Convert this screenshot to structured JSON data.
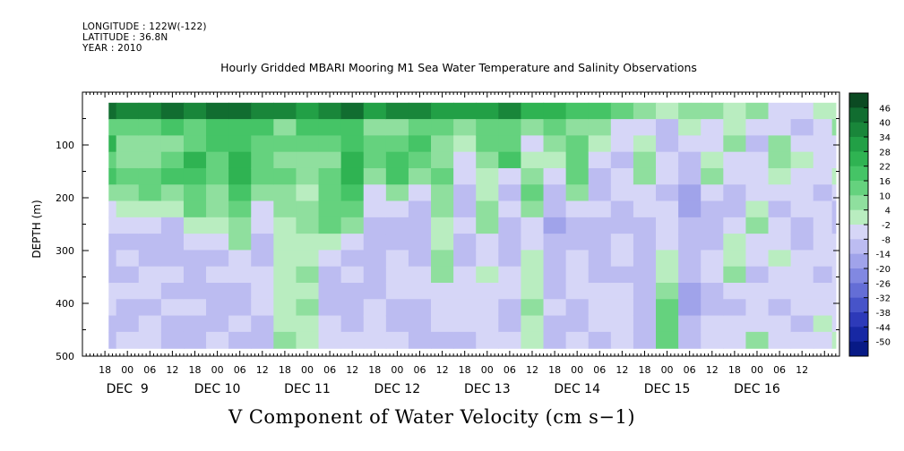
{
  "header": {
    "longitude": "LONGITUDE : 122W(-122)",
    "latitude": "LATITUDE : 36.8N",
    "year": "YEAR : 2010"
  },
  "chart_data": {
    "type": "heatmap",
    "title": "Hourly Gridded MBARI Mooring M1 Sea Water Temperature and Salinity Observations",
    "variable_label": "V Component of Water Velocity (cm s−1)",
    "ylabel": "DEPTH (m)",
    "ylim": [
      500,
      0
    ],
    "y_inverted": true,
    "y_ticks": [
      100,
      200,
      300,
      400,
      500
    ],
    "x_range_hours": [
      "2010-12-08T12:00",
      "2010-12-16T22:00"
    ],
    "x_hour_ticks": [
      "18",
      "00",
      "06",
      "12",
      "18",
      "00",
      "06",
      "12",
      "18",
      "00",
      "06",
      "12",
      "18",
      "00",
      "06",
      "12",
      "18",
      "00",
      "06",
      "12",
      "18",
      "00",
      "06",
      "12",
      "18",
      "00",
      "06",
      "12",
      "18",
      "00",
      "06",
      "12"
    ],
    "x_day_labels": [
      "DEC  9",
      "DEC 10",
      "DEC 11",
      "DEC 12",
      "DEC 13",
      "DEC 14",
      "DEC 15",
      "DEC 16"
    ],
    "data_time_range": [
      "2010-12-08T19:00",
      "2010-12-16T21:00"
    ],
    "data_depth_range_m": [
      20,
      485
    ],
    "colorbar": {
      "levels": [
        "46",
        "40",
        "34",
        "28",
        "22",
        "16",
        "10",
        "4",
        "-2",
        "-8",
        "-14",
        "-20",
        "-26",
        "-32",
        "-38",
        "-44",
        "-50"
      ],
      "colors": [
        "#0b4a22",
        "#116d30",
        "#19863a",
        "#22a046",
        "#2fb352",
        "#45c466",
        "#65d27e",
        "#8fdf9e",
        "#b9edc0",
        "#d6d6f7",
        "#bcbcf1",
        "#a0a3ea",
        "#8188e1",
        "#646ed6",
        "#4754c9",
        "#2d3ab9",
        "#1728a4",
        "#081a86"
      ]
    },
    "columns": [
      {
        "hour": 0,
        "v": [
          35,
          20,
          14,
          10,
          6,
          8,
          -2,
          -4,
          -10,
          -12,
          -14,
          -12,
          -12,
          -14,
          -8
        ]
      },
      {
        "hour": 6,
        "v": [
          40,
          14,
          22,
          10,
          18,
          6,
          -4,
          -8,
          -14,
          -12,
          -12,
          -8,
          -6,
          -10,
          -10
        ]
      },
      {
        "hour": 12,
        "v": [
          38,
          10,
          4,
          8,
          10,
          4,
          -2,
          -6,
          -10,
          -6,
          -14,
          -8,
          -12,
          -10,
          -8
        ]
      },
      {
        "hour": 18,
        "v": [
          36,
          12,
          8,
          6,
          14,
          10,
          2,
          -6,
          -10,
          -12,
          -8,
          -4,
          -10,
          -6,
          -4
        ]
      },
      {
        "hour": 24,
        "v": [
          40,
          18,
          6,
          12,
          16,
          8,
          2,
          -10,
          -14,
          -10,
          -6,
          -10,
          -8,
          -12,
          -10
        ]
      },
      {
        "hour": 30,
        "v": [
          38,
          10,
          14,
          22,
          16,
          14,
          10,
          2,
          -8,
          -12,
          -12,
          -14,
          -8,
          -10,
          -12
        ]
      },
      {
        "hour": 36,
        "v": [
          42,
          20,
          18,
          14,
          10,
          6,
          8,
          -2,
          -6,
          -12,
          -8,
          -12,
          -10,
          -12,
          -8
        ]
      },
      {
        "hour": 42,
        "v": [
          40,
          16,
          16,
          24,
          22,
          18,
          14,
          8,
          4,
          -6,
          -4,
          -12,
          -14,
          -8,
          -10
        ]
      },
      {
        "hour": 48,
        "v": [
          34,
          20,
          12,
          14,
          10,
          6,
          -4,
          -8,
          -12,
          -10,
          -8,
          -6,
          -8,
          -12,
          -10
        ]
      },
      {
        "hour": 54,
        "v": [
          36,
          6,
          10,
          6,
          10,
          8,
          4,
          2,
          2,
          -2,
          0,
          2,
          -2,
          0,
          4
        ]
      },
      {
        "hour": 60,
        "v": [
          32,
          16,
          12,
          8,
          4,
          2,
          6,
          6,
          2,
          2,
          4,
          -2,
          4,
          2,
          -2
        ]
      },
      {
        "hour": 66,
        "v": [
          34,
          20,
          14,
          8,
          10,
          12,
          14,
          10,
          2,
          -6,
          -10,
          -14,
          -12,
          -8,
          -6
        ]
      },
      {
        "hour": 72,
        "v": [
          40,
          18,
          20,
          22,
          24,
          16,
          10,
          6,
          -4,
          -10,
          -8,
          -10,
          -12,
          -10,
          -8
        ]
      },
      {
        "hour": 78,
        "v": [
          30,
          6,
          10,
          14,
          6,
          -4,
          -8,
          -12,
          -14,
          -12,
          -14,
          -10,
          -8,
          -6,
          -4
        ]
      },
      {
        "hour": 84,
        "v": [
          36,
          8,
          14,
          20,
          18,
          6,
          -6,
          -10,
          -14,
          -8,
          -4,
          -8,
          -12,
          -10,
          -8
        ]
      },
      {
        "hour": 90,
        "v": [
          34,
          14,
          16,
          12,
          4,
          -6,
          -12,
          -10,
          -14,
          -12,
          -8,
          -6,
          -10,
          -12,
          -12
        ]
      },
      {
        "hour": 96,
        "v": [
          32,
          10,
          4,
          6,
          10,
          8,
          6,
          2,
          -2,
          4,
          6,
          -4,
          -8,
          -6,
          -10
        ]
      },
      {
        "hour": 102,
        "v": [
          28,
          6,
          2,
          -4,
          -6,
          -10,
          -12,
          -8,
          -10,
          -14,
          -8,
          -4,
          -6,
          -8,
          -10
        ]
      },
      {
        "hour": 108,
        "v": [
          30,
          10,
          14,
          6,
          2,
          -2,
          6,
          8,
          -6,
          -4,
          -2,
          -6,
          -8,
          -4,
          -8
        ]
      },
      {
        "hour": 114,
        "v": [
          36,
          14,
          12,
          16,
          -4,
          -10,
          -8,
          -12,
          -14,
          -10,
          -8,
          -6,
          -10,
          -12,
          -8
        ]
      },
      {
        "hour": 120,
        "v": [
          26,
          4,
          -4,
          2,
          8,
          12,
          6,
          -6,
          -4,
          -2,
          2,
          -2,
          4,
          2,
          -2
        ]
      },
      {
        "hour": 126,
        "v": [
          24,
          10,
          6,
          -2,
          -6,
          -10,
          -14,
          -16,
          -12,
          -14,
          -10,
          -12,
          -8,
          -10,
          -12
        ]
      },
      {
        "hour": 132,
        "v": [
          20,
          8,
          12,
          14,
          12,
          8,
          -4,
          -12,
          -10,
          -6,
          -4,
          -8,
          -12,
          -10,
          -6
        ]
      },
      {
        "hour": 138,
        "v": [
          18,
          6,
          -2,
          -6,
          -10,
          -12,
          -8,
          -10,
          -14,
          -12,
          -10,
          -8,
          -6,
          -8,
          -10
        ]
      },
      {
        "hour": 144,
        "v": [
          10,
          -4,
          -8,
          -10,
          -6,
          -4,
          -10,
          -12,
          -8,
          -6,
          -10,
          -8,
          -4,
          -6,
          -8
        ]
      },
      {
        "hour": 150,
        "v": [
          6,
          -6,
          -2,
          4,
          6,
          -4,
          -8,
          -10,
          -12,
          -14,
          -12,
          -10,
          -12,
          -14,
          -10
        ]
      },
      {
        "hour": 156,
        "v": [
          2,
          -10,
          -12,
          -8,
          -6,
          -10,
          -6,
          -8,
          -4,
          -2,
          2,
          6,
          10,
          14,
          12
        ]
      },
      {
        "hour": 162,
        "v": [
          4,
          2,
          -6,
          -10,
          -14,
          -20,
          -16,
          -12,
          -14,
          -10,
          -12,
          -16,
          -18,
          -14,
          -12
        ]
      },
      {
        "hour": 168,
        "v": [
          6,
          -4,
          -8,
          -2,
          4,
          -6,
          -10,
          -14,
          -10,
          -8,
          -6,
          -10,
          -12,
          -8,
          -6
        ]
      },
      {
        "hour": 174,
        "v": [
          -2,
          2,
          6,
          -4,
          -8,
          -12,
          -10,
          -6,
          -2,
          2,
          4,
          -6,
          -10,
          -8,
          -4
        ]
      },
      {
        "hour": 180,
        "v": [
          4,
          -6,
          -10,
          -8,
          -4,
          -6,
          2,
          6,
          -4,
          -8,
          -10,
          -6,
          -8,
          -4,
          4
        ]
      },
      {
        "hour": 186,
        "v": [
          -4,
          -8,
          4,
          8,
          2,
          -6,
          -10,
          -8,
          -4,
          -2,
          -6,
          -8,
          -10,
          -6,
          -4
        ]
      },
      {
        "hour": 192,
        "v": [
          -6,
          -10,
          -4,
          2,
          -4,
          -8,
          -6,
          -10,
          -12,
          -8,
          -4,
          -6,
          -8,
          -10,
          -6
        ]
      },
      {
        "hour": 198,
        "v": [
          -2,
          -6,
          -8,
          -4,
          -6,
          -10,
          -8,
          -4,
          -6,
          -8,
          -10,
          -6,
          -4,
          -2,
          -6
        ]
      },
      {
        "hour": 202,
        "v": [
          2,
          4,
          -4,
          -8,
          -2,
          -6,
          -10,
          -12,
          -8,
          -6,
          -4,
          -8,
          -6,
          -4,
          -2
        ]
      }
    ]
  }
}
